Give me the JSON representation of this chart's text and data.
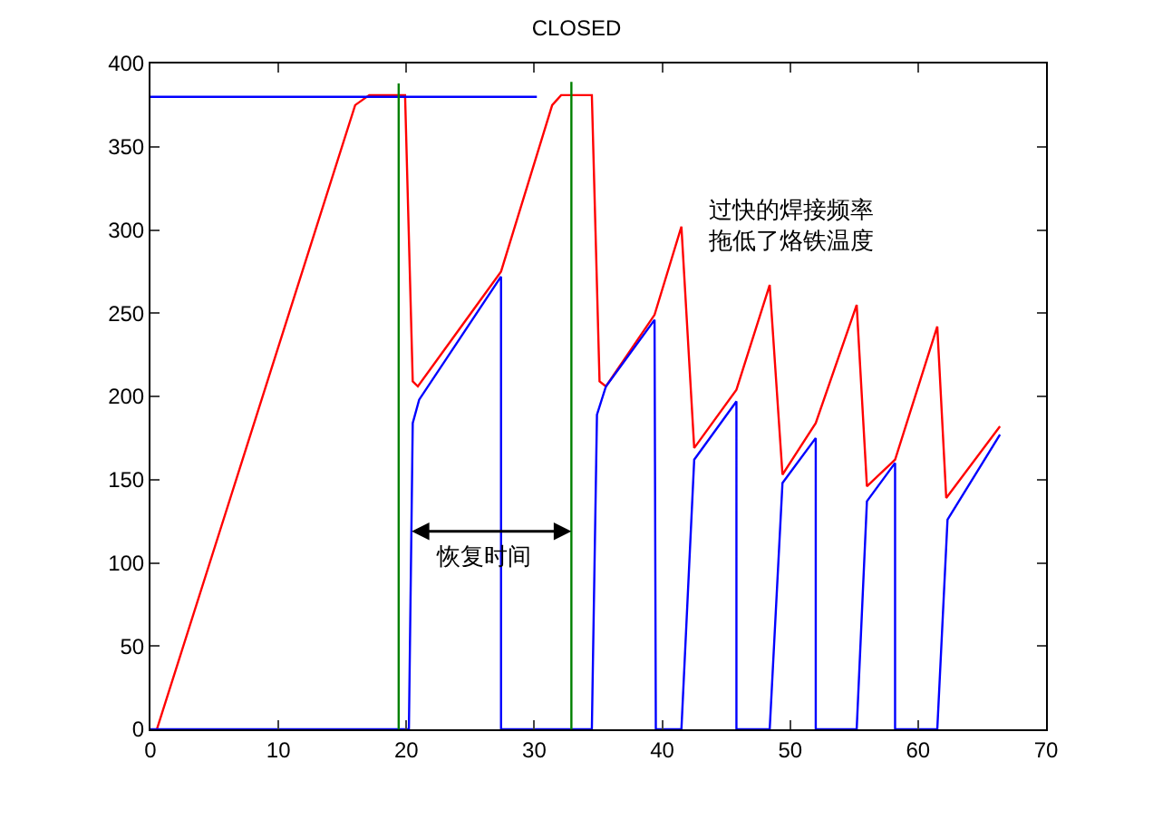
{
  "chart_data": {
    "type": "line",
    "title": "CLOSED",
    "xlim": [
      0,
      70
    ],
    "xticks": [
      0,
      10,
      20,
      30,
      40,
      50,
      60,
      70
    ],
    "ylim": [
      0,
      400
    ],
    "yticks": [
      0,
      50,
      100,
      150,
      200,
      250,
      300,
      350,
      400
    ],
    "line_style": "solid",
    "marker": "none",
    "series": [
      {
        "color": "#ff0000",
        "x": [
          0.5,
          16,
          17.1,
          19.9,
          20.5,
          20.9,
          27.4,
          31.4,
          32.1,
          34.5,
          35.1,
          35.6,
          39.4,
          41.5,
          42.5,
          45.8,
          48.4,
          49.4,
          52,
          55.2,
          56,
          58.2,
          61.5,
          62.2,
          66.4
        ],
        "values": [
          0,
          375,
          381,
          381,
          209,
          206,
          275,
          375,
          381,
          381,
          209,
          206,
          249,
          302,
          169,
          204,
          267,
          153,
          184,
          255,
          146,
          162,
          242,
          139,
          182
        ]
      },
      {
        "color": "#0000ff",
        "x": [
          0,
          20.2,
          20.5,
          21,
          27.4,
          27.4,
          34.5,
          34.9,
          35.6,
          39.4,
          39.5,
          41.5,
          42.5,
          45.8,
          45.8,
          48.4,
          49.4,
          52,
          52,
          55.2,
          56,
          58.2,
          58.2,
          61.5,
          62.3,
          66.4
        ],
        "values": [
          0,
          0,
          184,
          198,
          272,
          0,
          0,
          189,
          206,
          246,
          0,
          0,
          162,
          197,
          0,
          0,
          148,
          175,
          0,
          0,
          137,
          160,
          0,
          0,
          126,
          177
        ]
      },
      {
        "color": "#0000ff",
        "x": [
          0,
          30.2
        ],
        "values": [
          380,
          380
        ]
      },
      {
        "color": "#008000",
        "x": [
          19.4,
          19.4
        ],
        "values": [
          0,
          388
        ]
      },
      {
        "color": "#008000",
        "x": [
          32.9,
          32.9
        ],
        "values": [
          0,
          389
        ]
      }
    ],
    "annotations": [
      "恢复时间",
      "过快的焊接频率拖低了烙铁温度"
    ]
  }
}
